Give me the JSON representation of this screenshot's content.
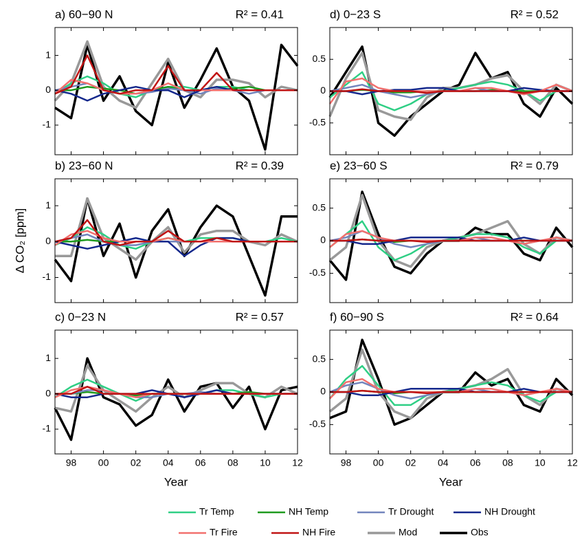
{
  "y_label": "Δ CO₂ [ppm]",
  "x_label": "Year",
  "x": [
    1997,
    1998,
    1999,
    2000,
    2001,
    2002,
    2003,
    2004,
    2005,
    2006,
    2007,
    2008,
    2009,
    2010,
    2011,
    2012
  ],
  "xlim": [
    1997,
    2012
  ],
  "xticks": [
    {
      "value": 1998,
      "label": "98"
    },
    {
      "value": 2000,
      "label": "00"
    },
    {
      "value": 2002,
      "label": "02"
    },
    {
      "value": 2004,
      "label": "04"
    },
    {
      "value": 2006,
      "label": "06"
    },
    {
      "value": 2008,
      "label": "08"
    },
    {
      "value": 2010,
      "label": "10"
    },
    {
      "value": 2012,
      "label": "12"
    }
  ],
  "series": [
    {
      "name": "Tr Temp",
      "color": "#2fcf85"
    },
    {
      "name": "NH Temp",
      "color": "#1e9a1e"
    },
    {
      "name": "Tr Drought",
      "color": "#7285bd"
    },
    {
      "name": "NH Drought",
      "color": "#14288c"
    },
    {
      "name": "Tr Fire",
      "color": "#f2706e"
    },
    {
      "name": "NH Fire",
      "color": "#c01414"
    },
    {
      "name": "Mod",
      "color": "#999999"
    },
    {
      "name": "Obs",
      "color": "#000000"
    }
  ],
  "chart_data": [
    {
      "type": "line",
      "title": "a) 60−90 N",
      "annotation": "R² = 0.41",
      "ylim": [
        -1.85,
        1.8
      ],
      "yticks": [
        -1,
        0,
        1
      ],
      "series": [
        {
          "values": [
            -0.1,
            0.2,
            0.4,
            0.2,
            -0.1,
            -0.2,
            0,
            0.1,
            0.1,
            0,
            0.1,
            0.1,
            0,
            0,
            0,
            0
          ]
        },
        {
          "values": [
            0,
            0,
            0.1,
            0.05,
            0,
            -0.1,
            0,
            0.1,
            0,
            0,
            0,
            0.05,
            0.1,
            0,
            0,
            0
          ]
        },
        {
          "values": [
            0,
            0.1,
            0.2,
            0,
            -0.1,
            -0.1,
            -0.05,
            0.05,
            0,
            -0.1,
            0.05,
            0,
            -0.1,
            0,
            0,
            0
          ]
        },
        {
          "values": [
            0,
            -0.1,
            -0.3,
            -0.1,
            0,
            0.1,
            0,
            0,
            -0.2,
            0,
            0.1,
            0,
            0,
            0,
            0,
            0
          ]
        },
        {
          "values": [
            -0.1,
            0.3,
            0.2,
            0,
            -0.1,
            -0.1,
            0,
            0.2,
            0,
            0,
            0,
            0,
            0,
            0,
            0,
            0
          ]
        },
        {
          "values": [
            -0.1,
            0.1,
            1.0,
            0,
            -0.1,
            0,
            0,
            0.7,
            0,
            0,
            0.5,
            0,
            0,
            0,
            0,
            0
          ]
        },
        {
          "values": [
            -0.3,
            0.2,
            1.4,
            0.1,
            -0.3,
            -0.5,
            0.2,
            0.9,
            0,
            -0.2,
            0.3,
            0.3,
            0.2,
            -0.2,
            0.1,
            0
          ]
        },
        {
          "values": [
            -0.5,
            -0.8,
            1.3,
            -0.3,
            0.4,
            -0.6,
            -1.0,
            0.8,
            -0.5,
            0.3,
            1.2,
            0.1,
            -0.3,
            -1.7,
            1.3,
            0.7
          ]
        }
      ]
    },
    {
      "type": "line",
      "title": "b) 23−60 N",
      "annotation": "R² = 0.39",
      "ylim": [
        -1.7,
        1.75
      ],
      "yticks": [
        -1,
        0,
        1
      ],
      "series": [
        {
          "values": [
            -0.1,
            0.1,
            0.4,
            0.2,
            -0.1,
            -0.2,
            0,
            0.1,
            0,
            0.1,
            0.1,
            0.1,
            0,
            0,
            0.1,
            0
          ]
        },
        {
          "values": [
            0,
            0,
            0.05,
            0,
            0,
            0,
            0,
            0.1,
            0,
            0,
            0,
            0,
            0,
            0,
            0,
            0
          ]
        },
        {
          "values": [
            0,
            0.1,
            0.2,
            0,
            -0.1,
            -0.1,
            0,
            0,
            0,
            0,
            0,
            0,
            0,
            0,
            0,
            0
          ]
        },
        {
          "values": [
            0,
            -0.1,
            -0.2,
            -0.1,
            0,
            0.1,
            0,
            0,
            -0.4,
            -0.1,
            0.1,
            0.1,
            0,
            0,
            0,
            0
          ]
        },
        {
          "values": [
            -0.1,
            0.2,
            0.3,
            0.1,
            0,
            0,
            0,
            0.1,
            0,
            0,
            0,
            0,
            0,
            0,
            0,
            0
          ]
        },
        {
          "values": [
            0,
            0.1,
            0.6,
            0,
            -0.1,
            0,
            0,
            0.3,
            0,
            0,
            0.1,
            0,
            0,
            0,
            0,
            0
          ]
        },
        {
          "values": [
            -0.4,
            -0.4,
            1.2,
            0.1,
            -0.2,
            -0.5,
            0,
            0.4,
            -0.3,
            0.2,
            0.3,
            0.3,
            0,
            -0.1,
            0.2,
            0
          ]
        },
        {
          "values": [
            -0.5,
            -1.1,
            1.2,
            -0.4,
            0.5,
            -1.0,
            0.3,
            0.9,
            -0.4,
            0.4,
            1.0,
            0.7,
            -0.4,
            -1.5,
            0.7,
            0.7
          ]
        }
      ]
    },
    {
      "type": "line",
      "title": "c) 0−23 N",
      "annotation": "R² = 0.57",
      "ylim": [
        -1.7,
        1.8
      ],
      "yticks": [
        -1,
        0,
        1
      ],
      "series": [
        {
          "values": [
            -0.1,
            0.2,
            0.4,
            0.2,
            0,
            -0.2,
            0,
            0,
            0,
            0,
            0.1,
            0.1,
            0,
            -0.1,
            0,
            0
          ]
        },
        {
          "values": [
            0,
            0,
            0.05,
            0,
            0,
            -0.05,
            0,
            0,
            0,
            0,
            0,
            0,
            0.05,
            0,
            0,
            0
          ]
        },
        {
          "values": [
            0,
            0,
            0.1,
            0.1,
            0,
            -0.1,
            -0.1,
            0,
            0,
            0.05,
            0,
            0,
            0,
            0,
            0,
            0
          ]
        },
        {
          "values": [
            0,
            -0.1,
            -0.1,
            0,
            0,
            0,
            0.1,
            0,
            -0.1,
            0,
            0.1,
            0,
            0,
            0,
            0,
            0
          ]
        },
        {
          "values": [
            -0.1,
            0.1,
            0.2,
            0.1,
            0,
            -0.1,
            0,
            0,
            0,
            0,
            0,
            0,
            0,
            0,
            0,
            0
          ]
        },
        {
          "values": [
            0,
            0,
            0.2,
            0,
            0,
            0,
            0,
            0,
            0,
            0,
            0,
            0,
            0,
            0,
            0,
            0
          ]
        },
        {
          "values": [
            -0.4,
            -0.5,
            0.8,
            0.1,
            -0.2,
            -0.5,
            -0.1,
            0.2,
            -0.1,
            0.1,
            0.3,
            0.3,
            0,
            -0.1,
            0.2,
            0
          ]
        },
        {
          "values": [
            -0.4,
            -1.3,
            1.0,
            -0.1,
            -0.3,
            -0.9,
            -0.6,
            0.4,
            -0.5,
            0.2,
            0.3,
            -0.4,
            0.2,
            -1.0,
            0.1,
            0.2
          ]
        }
      ]
    },
    {
      "type": "line",
      "title": "d) 0−23 S",
      "annotation": "R² = 0.52",
      "ylim": [
        -1,
        1
      ],
      "yticks": [
        -0.5,
        0,
        0.5
      ],
      "series": [
        {
          "values": [
            -0.1,
            0.1,
            0.3,
            -0.2,
            -0.3,
            -0.2,
            -0.05,
            0,
            0.05,
            0.1,
            0.15,
            0.1,
            0,
            -0.15,
            0,
            0
          ]
        },
        {
          "values": [
            0,
            0,
            0.02,
            0,
            -0.02,
            -0.02,
            0,
            0,
            0,
            0,
            0.02,
            0,
            0,
            0,
            0,
            0
          ]
        },
        {
          "values": [
            0,
            0.05,
            0.1,
            0,
            -0.05,
            -0.1,
            -0.05,
            0,
            0,
            0.05,
            0,
            0,
            -0.05,
            0,
            0,
            0
          ]
        },
        {
          "values": [
            0,
            0,
            -0.05,
            0,
            0.02,
            0.02,
            0.05,
            0.05,
            0,
            0,
            0,
            0,
            0.05,
            0.02,
            0,
            0
          ]
        },
        {
          "values": [
            -0.2,
            0.15,
            0.2,
            0.05,
            0,
            0,
            0,
            0,
            0,
            0.05,
            0.05,
            0,
            -0.05,
            0,
            0.1,
            0
          ]
        },
        {
          "values": [
            0,
            0,
            0.03,
            0,
            0,
            0,
            -0.03,
            0,
            0,
            0,
            0,
            0,
            -0.03,
            0,
            0,
            0
          ]
        },
        {
          "values": [
            -0.4,
            0.2,
            0.6,
            -0.3,
            -0.4,
            -0.45,
            -0.1,
            0.05,
            0.05,
            0.1,
            0.2,
            0.25,
            0,
            -0.2,
            0.1,
            0
          ]
        },
        {
          "values": [
            -0.1,
            0.3,
            0.7,
            -0.5,
            -0.7,
            -0.4,
            -0.2,
            0,
            0.1,
            0.6,
            0.2,
            0.3,
            -0.2,
            -0.4,
            0.05,
            -0.2
          ]
        }
      ]
    },
    {
      "type": "line",
      "title": "e) 23−60 S",
      "annotation": "R² = 0.79",
      "ylim": [
        -0.95,
        0.95
      ],
      "yticks": [
        -0.5,
        0,
        0.5
      ],
      "series": [
        {
          "values": [
            -0.1,
            0.1,
            0.3,
            -0.1,
            -0.3,
            -0.2,
            -0.05,
            0,
            0.05,
            0.1,
            0.1,
            0.05,
            -0.1,
            -0.2,
            0,
            0
          ]
        },
        {
          "values": [
            0,
            0,
            0.02,
            0,
            -0.02,
            0,
            0,
            0,
            0,
            0,
            0,
            0,
            0,
            0,
            0,
            0
          ]
        },
        {
          "values": [
            0,
            0.05,
            0.15,
            0.05,
            -0.05,
            -0.1,
            -0.05,
            0,
            0,
            0.05,
            0,
            0,
            -0.05,
            0,
            0,
            0
          ]
        },
        {
          "values": [
            0,
            0,
            -0.05,
            -0.05,
            0,
            0.05,
            0.05,
            0.05,
            0.05,
            0,
            0,
            0,
            0.05,
            0,
            0,
            0
          ]
        },
        {
          "values": [
            -0.1,
            0.1,
            0.15,
            0.05,
            0,
            0,
            0,
            0,
            0,
            0.05,
            0.05,
            0,
            -0.05,
            0,
            0.05,
            0
          ]
        },
        {
          "values": [
            0,
            0,
            0.02,
            0,
            0,
            0,
            -0.02,
            0,
            0,
            0,
            0,
            0,
            0,
            0,
            0,
            0
          ]
        },
        {
          "values": [
            -0.3,
            -0.1,
            0.7,
            0,
            -0.3,
            -0.4,
            -0.1,
            0,
            0.05,
            0.1,
            0.2,
            0.3,
            -0.05,
            -0.2,
            0.05,
            0
          ]
        },
        {
          "values": [
            -0.3,
            -0.6,
            0.75,
            0.1,
            -0.4,
            -0.5,
            -0.2,
            0,
            0,
            0.2,
            0.1,
            0.1,
            -0.2,
            -0.3,
            0.2,
            -0.1
          ]
        }
      ]
    },
    {
      "type": "line",
      "title": "f) 60−90 S",
      "annotation": "R² = 0.64",
      "ylim": [
        -0.95,
        0.95
      ],
      "yticks": [
        -0.5,
        0,
        0.5
      ],
      "series": [
        {
          "values": [
            -0.1,
            0.2,
            0.4,
            0.1,
            -0.2,
            -0.2,
            -0.05,
            0,
            0.05,
            0.1,
            0.15,
            0.1,
            -0.05,
            -0.15,
            0,
            0
          ]
        },
        {
          "values": [
            0,
            0,
            0.02,
            0,
            -0.02,
            0,
            0,
            0,
            0,
            0,
            0,
            0,
            0,
            0,
            0,
            0
          ]
        },
        {
          "values": [
            0,
            0.1,
            0.15,
            0.05,
            -0.05,
            -0.1,
            -0.05,
            0,
            0,
            0.05,
            0,
            0,
            -0.05,
            0,
            0,
            0
          ]
        },
        {
          "values": [
            0,
            0,
            -0.05,
            -0.05,
            0,
            0.05,
            0.05,
            0.05,
            0.05,
            0,
            0,
            0,
            0.05,
            0,
            0,
            0
          ]
        },
        {
          "values": [
            -0.1,
            0.15,
            0.2,
            0.05,
            0,
            0,
            0,
            0,
            0,
            0.05,
            0.05,
            0,
            -0.05,
            0,
            0.05,
            0
          ]
        },
        {
          "values": [
            0,
            0,
            0.02,
            0,
            0,
            0,
            -0.02,
            0,
            0,
            0,
            0,
            0,
            0,
            0,
            0,
            0
          ]
        },
        {
          "values": [
            -0.3,
            -0.1,
            0.65,
            0,
            -0.3,
            -0.4,
            -0.1,
            0,
            0.05,
            0.1,
            0.2,
            0.35,
            -0.05,
            -0.2,
            0.05,
            0
          ]
        },
        {
          "values": [
            -0.4,
            -0.3,
            0.8,
            0.2,
            -0.5,
            -0.4,
            -0.2,
            0,
            0,
            0.3,
            0.1,
            0.2,
            -0.2,
            -0.3,
            0.2,
            -0.05
          ]
        }
      ]
    }
  ]
}
